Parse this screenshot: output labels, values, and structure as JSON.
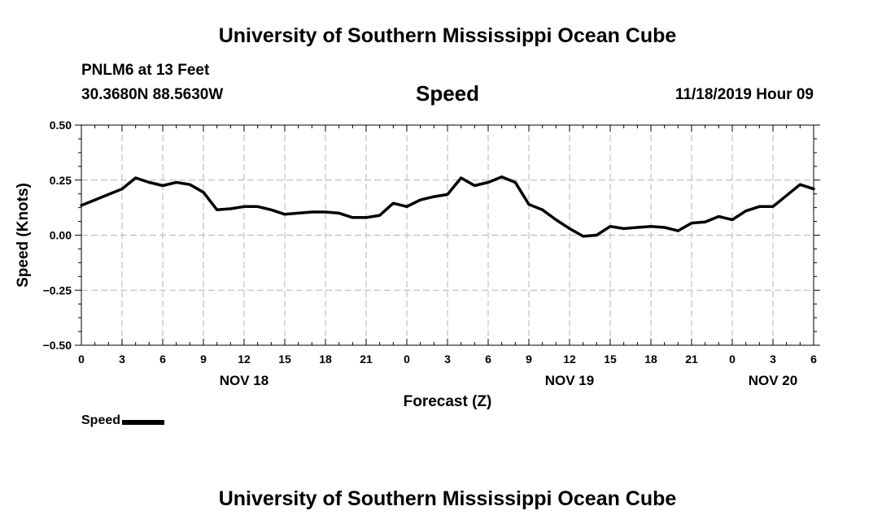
{
  "header": {
    "title": "University of Southern Mississippi Ocean Cube",
    "station": "PNLM6 at 13 Feet",
    "coordinates": "30.3680N 88.5630W",
    "chart_heading": "Speed",
    "datetime": "11/18/2019 Hour 09"
  },
  "footer": {
    "title": "University of Southern Mississippi Ocean Cube"
  },
  "legend": {
    "label": "Speed",
    "color": "#000000"
  },
  "chart_data": {
    "type": "line",
    "title": "Speed",
    "xlabel": "Forecast (Z)",
    "ylabel": "Speed (Knots)",
    "xlim": [
      0,
      54
    ],
    "ylim": [
      -0.5,
      0.5
    ],
    "grid": true,
    "y_ticks": [
      -0.5,
      -0.25,
      0.0,
      0.25,
      0.5
    ],
    "y_tick_labels": [
      "−0.50",
      "−0.25",
      "0.00",
      "0.25",
      "0.50"
    ],
    "x_ticks": [
      0,
      3,
      6,
      9,
      12,
      15,
      18,
      21,
      24,
      27,
      30,
      33,
      36,
      39,
      42,
      45,
      48,
      51,
      54
    ],
    "x_tick_labels": [
      "0",
      "3",
      "6",
      "9",
      "12",
      "15",
      "18",
      "21",
      "0",
      "3",
      "6",
      "9",
      "12",
      "15",
      "18",
      "21",
      "0",
      "3",
      "6"
    ],
    "date_labels": [
      {
        "label": "NOV 18",
        "x": 12
      },
      {
        "label": "NOV 19",
        "x": 36
      },
      {
        "label": "NOV 20",
        "x": 51
      }
    ],
    "series": [
      {
        "name": "Speed",
        "color": "#000000",
        "x": [
          0,
          1,
          2,
          3,
          4,
          5,
          6,
          7,
          8,
          9,
          10,
          11,
          12,
          13,
          14,
          15,
          16,
          17,
          18,
          19,
          20,
          21,
          22,
          23,
          24,
          25,
          26,
          27,
          28,
          29,
          30,
          31,
          32,
          33,
          34,
          35,
          36,
          37,
          38,
          39,
          40,
          41,
          42,
          43,
          44,
          45,
          46,
          47,
          48,
          49,
          50,
          51,
          52,
          53,
          54
        ],
        "values": [
          0.135,
          0.16,
          0.185,
          0.21,
          0.26,
          0.24,
          0.225,
          0.24,
          0.23,
          0.195,
          0.115,
          0.12,
          0.13,
          0.13,
          0.115,
          0.095,
          0.1,
          0.105,
          0.105,
          0.1,
          0.08,
          0.08,
          0.09,
          0.145,
          0.13,
          0.16,
          0.175,
          0.185,
          0.26,
          0.225,
          0.24,
          0.265,
          0.24,
          0.14,
          0.115,
          0.07,
          0.03,
          -0.005,
          0.0,
          0.04,
          0.03,
          0.035,
          0.04,
          0.035,
          0.02,
          0.055,
          0.06,
          0.085,
          0.07,
          0.11,
          0.13,
          0.13,
          0.18,
          0.23,
          0.21
        ]
      }
    ]
  }
}
